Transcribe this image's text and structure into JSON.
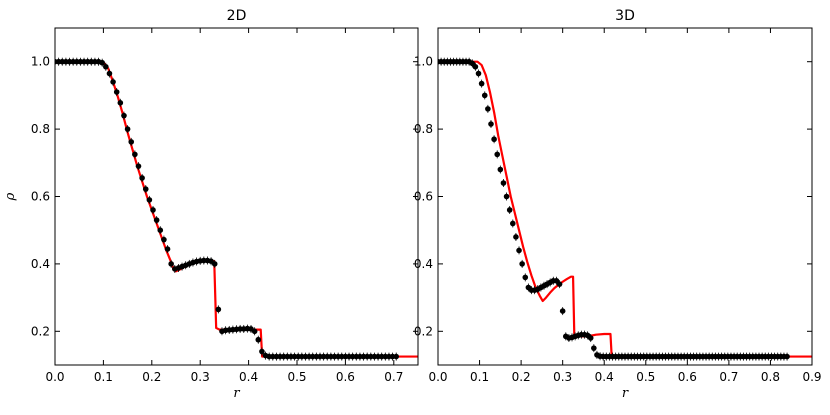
{
  "chart_data": [
    {
      "type": "line",
      "title": "2D",
      "xlabel": "r",
      "ylabel": "ρ",
      "xlim": [
        0.0,
        0.75
      ],
      "ylim": [
        0.1,
        1.1
      ],
      "xticks": [
        "0.0",
        "0.1",
        "0.2",
        "0.3",
        "0.4",
        "0.5",
        "0.6",
        "0.7"
      ],
      "xtick_values": [
        0.0,
        0.1,
        0.2,
        0.3,
        0.4,
        0.5,
        0.6,
        0.7
      ],
      "yticks": [
        "0.2",
        "0.4",
        "0.6",
        "0.8",
        "1.0"
      ],
      "ytick_values": [
        0.2,
        0.4,
        0.6,
        0.8,
        1.0
      ],
      "grid": false,
      "line_color": "#ff0000",
      "marker_color": "#000000",
      "series": [
        {
          "kind": "line",
          "x": [
            0.0,
            0.09,
            0.1,
            0.11,
            0.12,
            0.13,
            0.14,
            0.15,
            0.16,
            0.17,
            0.18,
            0.19,
            0.2,
            0.21,
            0.22,
            0.23,
            0.24,
            0.245,
            0.25,
            0.26,
            0.27,
            0.28,
            0.29,
            0.3,
            0.31,
            0.32,
            0.329,
            0.333,
            0.34,
            0.36,
            0.38,
            0.4,
            0.42,
            0.425,
            0.428,
            0.43,
            0.5,
            0.6,
            0.7,
            0.75
          ],
          "y": [
            1.0,
            1.0,
            0.998,
            0.98,
            0.94,
            0.895,
            0.845,
            0.79,
            0.74,
            0.69,
            0.645,
            0.6,
            0.56,
            0.52,
            0.48,
            0.44,
            0.405,
            0.385,
            0.378,
            0.385,
            0.393,
            0.4,
            0.405,
            0.408,
            0.41,
            0.41,
            0.408,
            0.21,
            0.205,
            0.205,
            0.205,
            0.205,
            0.205,
            0.205,
            0.125,
            0.125,
            0.125,
            0.125,
            0.125,
            0.125
          ]
        },
        {
          "kind": "scatter",
          "x": [
            0.0,
            0.0075,
            0.015,
            0.0225,
            0.03,
            0.0375,
            0.045,
            0.0525,
            0.06,
            0.0675,
            0.075,
            0.0825,
            0.09,
            0.0975,
            0.105,
            0.1125,
            0.12,
            0.1275,
            0.135,
            0.1425,
            0.15,
            0.1575,
            0.165,
            0.1725,
            0.18,
            0.1875,
            0.195,
            0.2025,
            0.21,
            0.2175,
            0.225,
            0.2325,
            0.24,
            0.2475,
            0.255,
            0.2625,
            0.27,
            0.2775,
            0.285,
            0.2925,
            0.3,
            0.3075,
            0.315,
            0.3225,
            0.33,
            0.3375,
            0.345,
            0.3525,
            0.36,
            0.3675,
            0.375,
            0.3825,
            0.39,
            0.3975,
            0.405,
            0.4125,
            0.42,
            0.4275,
            0.435,
            0.4425,
            0.45,
            0.4575,
            0.465,
            0.4725,
            0.48,
            0.4875,
            0.495,
            0.5025,
            0.51,
            0.5175,
            0.525,
            0.5325,
            0.54,
            0.5475,
            0.555,
            0.5625,
            0.57,
            0.5775,
            0.585,
            0.5925,
            0.6,
            0.6075,
            0.615,
            0.6225,
            0.63,
            0.6375,
            0.645,
            0.6525,
            0.66,
            0.6675,
            0.675,
            0.6825,
            0.69,
            0.6975,
            0.705
          ],
          "y": [
            1.0,
            1.0,
            1.0,
            1.0,
            1.0,
            1.0,
            1.0,
            1.0,
            1.0,
            1.0,
            1.0,
            1.0,
            1.0,
            0.997,
            0.985,
            0.965,
            0.94,
            0.91,
            0.878,
            0.84,
            0.8,
            0.762,
            0.725,
            0.69,
            0.655,
            0.622,
            0.59,
            0.56,
            0.53,
            0.5,
            0.472,
            0.444,
            0.4,
            0.385,
            0.388,
            0.392,
            0.396,
            0.4,
            0.404,
            0.407,
            0.409,
            0.41,
            0.41,
            0.408,
            0.4,
            0.265,
            0.2,
            0.203,
            0.204,
            0.205,
            0.206,
            0.207,
            0.207,
            0.208,
            0.207,
            0.2,
            0.175,
            0.14,
            0.128,
            0.125,
            0.125,
            0.125,
            0.125,
            0.125,
            0.125,
            0.125,
            0.125,
            0.125,
            0.125,
            0.125,
            0.125,
            0.125,
            0.125,
            0.125,
            0.125,
            0.125,
            0.125,
            0.125,
            0.125,
            0.125,
            0.125,
            0.125,
            0.125,
            0.125,
            0.125,
            0.125,
            0.125,
            0.125,
            0.125,
            0.125,
            0.125,
            0.125,
            0.125,
            0.125,
            0.125
          ]
        }
      ]
    },
    {
      "type": "line",
      "title": "3D",
      "xlabel": "r",
      "ylabel": "",
      "xlim": [
        0.0,
        0.9
      ],
      "ylim": [
        0.1,
        1.1
      ],
      "xticks": [
        "0.0",
        "0.1",
        "0.2",
        "0.3",
        "0.4",
        "0.5",
        "0.6",
        "0.7",
        "0.8",
        "0.9"
      ],
      "xtick_values": [
        0.0,
        0.1,
        0.2,
        0.3,
        0.4,
        0.5,
        0.6,
        0.7,
        0.8,
        0.9
      ],
      "yticks": [
        "0.2",
        "0.4",
        "0.6",
        "0.8",
        "1.0"
      ],
      "ytick_values": [
        0.2,
        0.4,
        0.6,
        0.8,
        1.0
      ],
      "grid": false,
      "line_color": "#ff0000",
      "marker_color": "#000000",
      "series": [
        {
          "kind": "line",
          "x": [
            0.0,
            0.095,
            0.105,
            0.115,
            0.125,
            0.135,
            0.145,
            0.155,
            0.165,
            0.175,
            0.185,
            0.195,
            0.205,
            0.215,
            0.225,
            0.235,
            0.245,
            0.252,
            0.26,
            0.27,
            0.28,
            0.29,
            0.3,
            0.31,
            0.32,
            0.325,
            0.328,
            0.335,
            0.345,
            0.36,
            0.38,
            0.4,
            0.41,
            0.415,
            0.418,
            0.425,
            0.5,
            0.6,
            0.7,
            0.8,
            0.9
          ],
          "y": [
            1.0,
            1.0,
            0.99,
            0.96,
            0.91,
            0.85,
            0.78,
            0.72,
            0.66,
            0.6,
            0.55,
            0.5,
            0.45,
            0.405,
            0.365,
            0.33,
            0.305,
            0.29,
            0.3,
            0.315,
            0.328,
            0.338,
            0.347,
            0.355,
            0.362,
            0.362,
            0.19,
            0.185,
            0.185,
            0.185,
            0.19,
            0.192,
            0.192,
            0.192,
            0.125,
            0.125,
            0.125,
            0.125,
            0.125,
            0.125,
            0.125
          ]
        },
        {
          "kind": "scatter",
          "x": [
            0.0,
            0.0075,
            0.015,
            0.0225,
            0.03,
            0.0375,
            0.045,
            0.0525,
            0.06,
            0.0675,
            0.075,
            0.0825,
            0.09,
            0.0975,
            0.105,
            0.1125,
            0.12,
            0.1275,
            0.135,
            0.1425,
            0.15,
            0.1575,
            0.165,
            0.1725,
            0.18,
            0.1875,
            0.195,
            0.2025,
            0.21,
            0.2175,
            0.225,
            0.2325,
            0.24,
            0.2475,
            0.255,
            0.2625,
            0.27,
            0.2775,
            0.285,
            0.2925,
            0.3,
            0.3075,
            0.315,
            0.3225,
            0.33,
            0.3375,
            0.345,
            0.3525,
            0.36,
            0.3675,
            0.375,
            0.3825,
            0.39,
            0.3975,
            0.405,
            0.4125,
            0.42,
            0.4275,
            0.435,
            0.4425,
            0.45,
            0.4575,
            0.465,
            0.4725,
            0.48,
            0.4875,
            0.495,
            0.5025,
            0.51,
            0.5175,
            0.525,
            0.5325,
            0.54,
            0.5475,
            0.555,
            0.5625,
            0.57,
            0.5775,
            0.585,
            0.5925,
            0.6,
            0.6075,
            0.615,
            0.6225,
            0.63,
            0.6375,
            0.645,
            0.6525,
            0.66,
            0.6675,
            0.675,
            0.6825,
            0.69,
            0.6975,
            0.705,
            0.7125,
            0.72,
            0.7275,
            0.735,
            0.7425,
            0.75,
            0.7575,
            0.765,
            0.7725,
            0.78,
            0.7875,
            0.795,
            0.8025,
            0.81,
            0.8175,
            0.825,
            0.8325,
            0.84
          ],
          "y": [
            1.0,
            1.0,
            1.0,
            1.0,
            1.0,
            1.0,
            1.0,
            1.0,
            1.0,
            1.0,
            1.0,
            0.995,
            0.985,
            0.965,
            0.935,
            0.9,
            0.86,
            0.815,
            0.77,
            0.725,
            0.68,
            0.64,
            0.6,
            0.56,
            0.52,
            0.48,
            0.44,
            0.4,
            0.36,
            0.33,
            0.322,
            0.322,
            0.325,
            0.33,
            0.335,
            0.34,
            0.345,
            0.35,
            0.35,
            0.34,
            0.26,
            0.185,
            0.18,
            0.182,
            0.185,
            0.188,
            0.19,
            0.19,
            0.188,
            0.18,
            0.15,
            0.13,
            0.126,
            0.125,
            0.125,
            0.125,
            0.125,
            0.125,
            0.125,
            0.125,
            0.125,
            0.125,
            0.125,
            0.125,
            0.125,
            0.125,
            0.125,
            0.125,
            0.125,
            0.125,
            0.125,
            0.125,
            0.125,
            0.125,
            0.125,
            0.125,
            0.125,
            0.125,
            0.125,
            0.125,
            0.125,
            0.125,
            0.125,
            0.125,
            0.125,
            0.125,
            0.125,
            0.125,
            0.125,
            0.125,
            0.125,
            0.125,
            0.125,
            0.125,
            0.125,
            0.125,
            0.125,
            0.125,
            0.125,
            0.125,
            0.125,
            0.125,
            0.125,
            0.125,
            0.125,
            0.125,
            0.125,
            0.125,
            0.125,
            0.125,
            0.125,
            0.125,
            0.125
          ]
        }
      ]
    }
  ]
}
